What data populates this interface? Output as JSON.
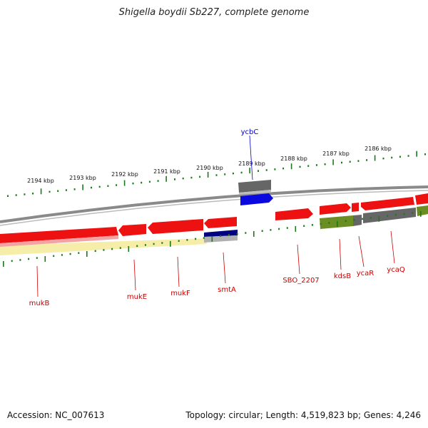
{
  "title": "Shigella boydii Sb227, complete genome",
  "footer": {
    "accession": "Accession: NC_007613",
    "summary": "Topology: circular; Length: 4,519,823 bp; Genes: 4,246"
  },
  "colors": {
    "forward_cds": "#ff0000",
    "reverse_cds": "#ff0000",
    "highlight": "#0000ff",
    "gray_feature": "#666666",
    "olive_feature": "#6b8e23",
    "navy_feature": "#000080",
    "backbone": "#808080",
    "tick": "#1a7a1a",
    "label_red": "#cc0000",
    "label_blue": "#0000cc",
    "yellow_band": "#f6eda8"
  },
  "scale_labels": [
    "2194 kbp",
    "2193 kbp",
    "2192 kbp",
    "2191 kbp",
    "2190 kbp",
    "2189 kbp",
    "2188 kbp",
    "2187 kbp",
    "2186 kbp"
  ],
  "gene_labels": {
    "upper": [
      {
        "name": "ycbC",
        "color": "blue"
      }
    ],
    "lower": [
      {
        "name": "mukB"
      },
      {
        "name": "mukE"
      },
      {
        "name": "mukF"
      },
      {
        "name": "smtA"
      },
      {
        "name": "SBO_2207"
      },
      {
        "name": "kdsB"
      },
      {
        "name": "ycaR"
      },
      {
        "name": "ycaQ"
      }
    ]
  }
}
